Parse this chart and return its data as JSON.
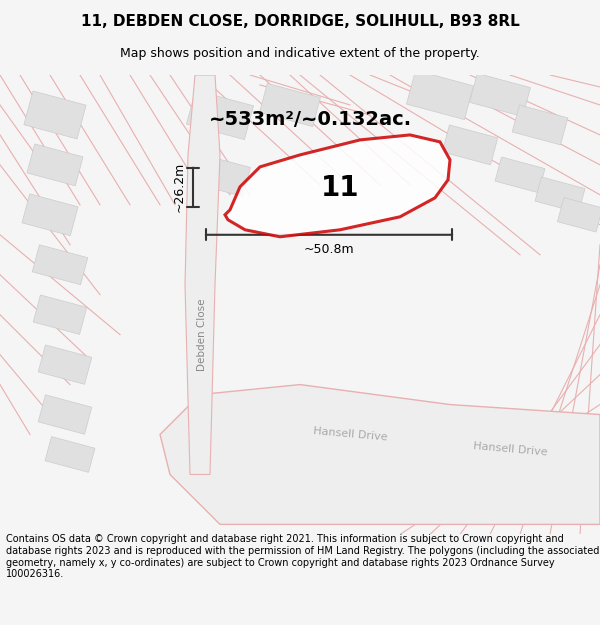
{
  "title_line1": "11, DEBDEN CLOSE, DORRIDGE, SOLIHULL, B93 8RL",
  "title_line2": "Map shows position and indicative extent of the property.",
  "area_text": "~533m²/~0.132ac.",
  "property_number": "11",
  "width_label": "~50.8m",
  "height_label": "~26.2m",
  "street_label1": "Debden Close",
  "street_label2": "Hansell Drive",
  "street_label3": "Hansell Drive",
  "footer_text": "Contains OS data © Crown copyright and database right 2021. This information is subject to Crown copyright and database rights 2023 and is reproduced with the permission of HM Land Registry. The polygons (including the associated geometry, namely x, y co-ordinates) are subject to Crown copyright and database rights 2023 Ordnance Survey 100026316.",
  "bg_color": "#f5f5f5",
  "map_bg": "#f8f8f8",
  "road_color": "#f0d0d0",
  "building_color": "#e0e0e0",
  "property_outline_color": "#cc0000",
  "dim_line_color": "#333333",
  "title_color": "#000000",
  "footer_color": "#000000",
  "road_fill": "#ffffff",
  "road_stroke": "#e8b0b0"
}
